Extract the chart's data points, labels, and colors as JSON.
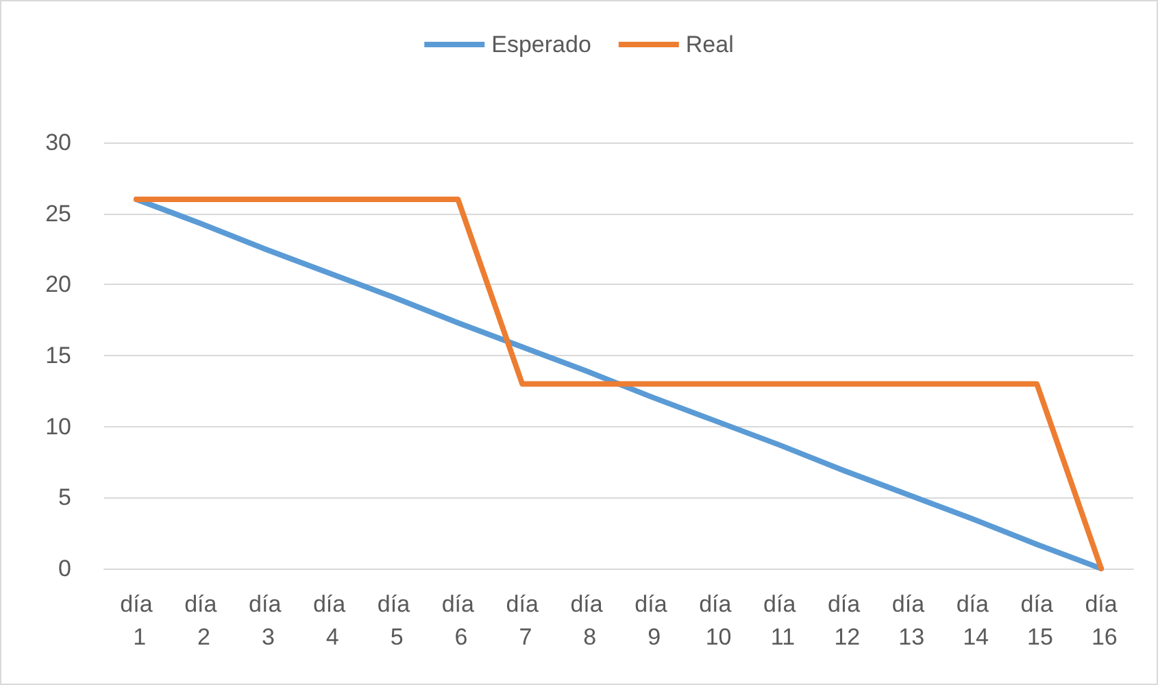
{
  "chart_data": {
    "type": "line",
    "categories": [
      "día 1",
      "día 2",
      "día 3",
      "día 4",
      "día 5",
      "día 6",
      "día 7",
      "día 8",
      "día 9",
      "día 10",
      "día 11",
      "día 12",
      "día 13",
      "día 14",
      "día 15",
      "día 16"
    ],
    "series": [
      {
        "name": "Esperado",
        "color": "#5b9bd5",
        "values": [
          26,
          24.3,
          22.5,
          20.8,
          19.1,
          17.3,
          15.6,
          13.9,
          12.1,
          10.4,
          8.7,
          6.9,
          5.2,
          3.5,
          1.7,
          0
        ]
      },
      {
        "name": "Real",
        "color": "#ed7d31",
        "values": [
          26,
          26,
          26,
          26,
          26,
          26,
          13,
          13,
          13,
          13,
          13,
          13,
          13,
          13,
          13,
          0
        ]
      }
    ],
    "ylim": [
      0,
      30
    ],
    "yticks": [
      0,
      5,
      10,
      15,
      20,
      25,
      30
    ],
    "grid": "y",
    "legend": "top",
    "marker": "none",
    "line_style": "solid"
  }
}
